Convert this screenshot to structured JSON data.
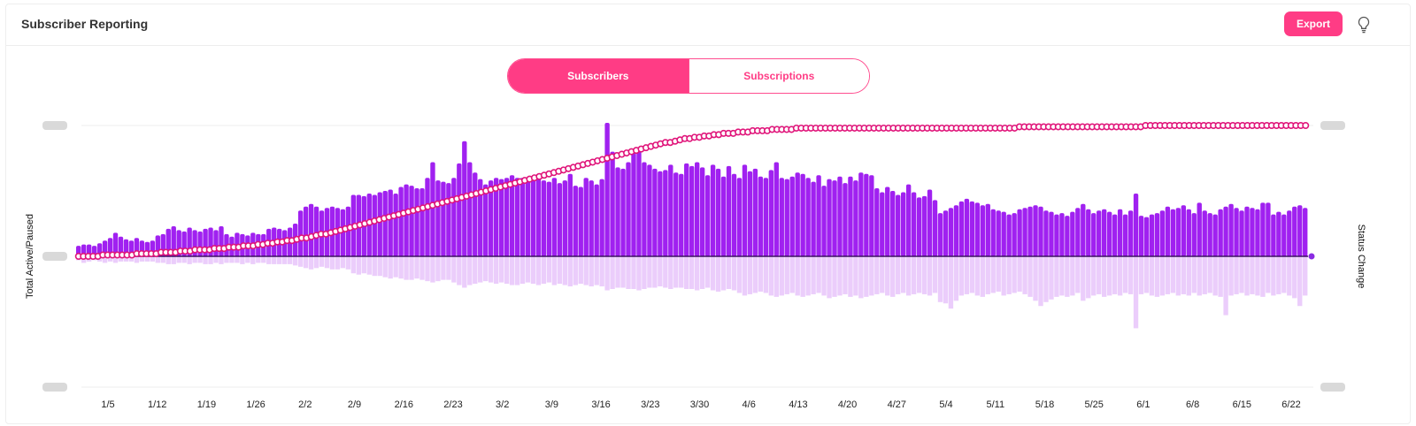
{
  "header": {
    "title": "Subscriber Reporting",
    "export_label": "Export",
    "help_icon": "lightbulb-icon"
  },
  "toggle": {
    "tabs": [
      {
        "label": "Subscribers",
        "active": true
      },
      {
        "label": "Subscriptions",
        "active": false
      }
    ]
  },
  "colors": {
    "accent": "#ff3c85",
    "bar_positive": "#a021f0",
    "bar_negative": "#ebcdfb",
    "line": "#e0157a"
  },
  "chart_data": {
    "type": "bar",
    "ylabel_left": "Total Active/Paused",
    "ylabel_right": "Status Change",
    "ticks": [
      "1/5",
      "1/12",
      "1/19",
      "1/26",
      "2/2",
      "2/9",
      "2/16",
      "2/23",
      "3/2",
      "3/9",
      "3/16",
      "3/23",
      "3/30",
      "4/6",
      "4/13",
      "4/20",
      "4/27",
      "5/4",
      "5/11",
      "5/18",
      "5/25",
      "6/1",
      "6/8",
      "6/15",
      "6/22"
    ],
    "ylim_change": [
      -1,
      1
    ],
    "ylim_total": [
      0,
      1
    ],
    "series": [
      {
        "kind": "bar",
        "values": [
          0.08,
          0.09,
          0.09,
          0.08,
          0.1,
          0.12,
          0.14,
          0.18,
          0.15,
          0.13,
          0.12,
          0.14,
          0.12,
          0.11,
          0.12,
          0.16,
          0.17,
          0.21,
          0.23,
          0.2,
          0.19,
          0.22,
          0.2,
          0.19,
          0.21,
          0.22,
          0.2,
          0.23,
          0.17,
          0.15,
          0.18,
          0.17,
          0.16,
          0.18,
          0.17,
          0.17,
          0.21,
          0.22,
          0.21,
          0.2,
          0.22,
          0.25,
          0.35,
          0.38,
          0.4,
          0.38,
          0.35,
          0.37,
          0.38,
          0.37,
          0.36,
          0.38,
          0.47,
          0.47,
          0.46,
          0.48,
          0.47,
          0.49,
          0.5,
          0.51,
          0.48,
          0.53,
          0.55,
          0.54,
          0.52,
          0.52,
          0.6,
          0.72,
          0.58,
          0.57,
          0.56,
          0.6,
          0.71,
          0.88,
          0.72,
          0.64,
          0.59,
          0.55,
          0.58,
          0.6,
          0.59,
          0.6,
          0.62,
          0.6,
          0.6,
          0.58,
          0.6,
          0.63,
          0.58,
          0.57,
          0.6,
          0.56,
          0.58,
          0.63,
          0.54,
          0.53,
          0.6,
          0.58,
          0.55,
          0.59,
          1.02,
          0.8,
          0.68,
          0.67,
          0.72,
          0.79,
          0.8,
          0.72,
          0.7,
          0.67,
          0.65,
          0.66,
          0.7,
          0.64,
          0.63,
          0.71,
          0.69,
          0.72,
          0.68,
          0.62,
          0.7,
          0.67,
          0.61,
          0.69,
          0.63,
          0.6,
          0.7,
          0.65,
          0.67,
          0.61,
          0.6,
          0.66,
          0.72,
          0.6,
          0.59,
          0.61,
          0.64,
          0.63,
          0.6,
          0.57,
          0.62,
          0.54,
          0.59,
          0.58,
          0.61,
          0.56,
          0.61,
          0.58,
          0.64,
          0.63,
          0.62,
          0.52,
          0.49,
          0.53,
          0.5,
          0.47,
          0.49,
          0.55,
          0.49,
          0.45,
          0.46,
          0.51,
          0.43,
          0.33,
          0.35,
          0.37,
          0.39,
          0.42,
          0.44,
          0.42,
          0.41,
          0.39,
          0.4,
          0.36,
          0.35,
          0.34,
          0.32,
          0.33,
          0.36,
          0.37,
          0.38,
          0.39,
          0.38,
          0.35,
          0.34,
          0.32,
          0.33,
          0.31,
          0.34,
          0.37,
          0.4,
          0.36,
          0.33,
          0.35,
          0.36,
          0.34,
          0.32,
          0.36,
          0.32,
          0.35,
          0.48,
          0.31,
          0.3,
          0.32,
          0.33,
          0.35,
          0.38,
          0.36,
          0.37,
          0.39,
          0.36,
          0.33,
          0.41,
          0.35,
          0.33,
          0.32,
          0.36,
          0.38,
          0.4,
          0.37,
          0.35,
          0.38,
          0.37,
          0.36,
          0.41,
          0.41,
          0.32,
          0.34,
          0.32,
          0.35,
          0.38,
          0.39,
          0.37
        ]
      },
      {
        "kind": "bar_negative",
        "values": [
          0.03,
          0.05,
          0.04,
          0.03,
          0.04,
          0.05,
          0.04,
          0.05,
          0.04,
          0.04,
          0.04,
          0.05,
          0.04,
          0.04,
          0.04,
          0.05,
          0.05,
          0.06,
          0.06,
          0.05,
          0.05,
          0.06,
          0.05,
          0.05,
          0.06,
          0.06,
          0.05,
          0.06,
          0.05,
          0.05,
          0.05,
          0.06,
          0.05,
          0.06,
          0.05,
          0.05,
          0.06,
          0.06,
          0.06,
          0.06,
          0.06,
          0.07,
          0.08,
          0.09,
          0.1,
          0.09,
          0.08,
          0.09,
          0.1,
          0.1,
          0.09,
          0.1,
          0.13,
          0.14,
          0.13,
          0.14,
          0.15,
          0.15,
          0.16,
          0.17,
          0.16,
          0.17,
          0.18,
          0.18,
          0.17,
          0.18,
          0.19,
          0.2,
          0.19,
          0.18,
          0.18,
          0.2,
          0.22,
          0.24,
          0.22,
          0.21,
          0.2,
          0.19,
          0.2,
          0.21,
          0.2,
          0.21,
          0.22,
          0.22,
          0.21,
          0.2,
          0.21,
          0.22,
          0.21,
          0.2,
          0.22,
          0.21,
          0.22,
          0.23,
          0.22,
          0.21,
          0.22,
          0.23,
          0.22,
          0.23,
          0.26,
          0.25,
          0.24,
          0.24,
          0.25,
          0.25,
          0.26,
          0.25,
          0.24,
          0.24,
          0.23,
          0.24,
          0.25,
          0.24,
          0.24,
          0.25,
          0.25,
          0.26,
          0.25,
          0.24,
          0.26,
          0.27,
          0.26,
          0.25,
          0.26,
          0.28,
          0.3,
          0.29,
          0.28,
          0.27,
          0.28,
          0.3,
          0.31,
          0.3,
          0.29,
          0.28,
          0.3,
          0.31,
          0.3,
          0.29,
          0.28,
          0.3,
          0.32,
          0.31,
          0.3,
          0.29,
          0.31,
          0.3,
          0.32,
          0.31,
          0.3,
          0.29,
          0.28,
          0.3,
          0.31,
          0.29,
          0.28,
          0.3,
          0.29,
          0.28,
          0.29,
          0.3,
          0.28,
          0.35,
          0.36,
          0.4,
          0.34,
          0.3,
          0.29,
          0.28,
          0.3,
          0.31,
          0.29,
          0.28,
          0.27,
          0.3,
          0.29,
          0.28,
          0.27,
          0.29,
          0.31,
          0.34,
          0.38,
          0.35,
          0.33,
          0.31,
          0.3,
          0.31,
          0.3,
          0.28,
          0.34,
          0.32,
          0.3,
          0.29,
          0.31,
          0.3,
          0.29,
          0.3,
          0.28,
          0.29,
          0.55,
          0.29,
          0.28,
          0.3,
          0.31,
          0.3,
          0.29,
          0.28,
          0.3,
          0.29,
          0.3,
          0.28,
          0.3,
          0.29,
          0.28,
          0.3,
          0.31,
          0.45,
          0.3,
          0.29,
          0.28,
          0.3,
          0.29,
          0.3,
          0.31,
          0.28,
          0.3,
          0.29,
          0.28,
          0.3,
          0.32,
          0.38,
          0.3
        ]
      },
      {
        "kind": "line",
        "values": [
          0.0,
          0.0,
          0.0,
          0.0,
          0.0,
          0.01,
          0.01,
          0.01,
          0.01,
          0.01,
          0.01,
          0.01,
          0.02,
          0.02,
          0.02,
          0.02,
          0.02,
          0.03,
          0.03,
          0.03,
          0.03,
          0.04,
          0.04,
          0.04,
          0.05,
          0.05,
          0.05,
          0.05,
          0.06,
          0.06,
          0.06,
          0.07,
          0.07,
          0.07,
          0.08,
          0.08,
          0.08,
          0.09,
          0.09,
          0.1,
          0.1,
          0.11,
          0.11,
          0.12,
          0.12,
          0.13,
          0.14,
          0.14,
          0.15,
          0.16,
          0.17,
          0.17,
          0.18,
          0.19,
          0.2,
          0.21,
          0.22,
          0.23,
          0.24,
          0.25,
          0.26,
          0.27,
          0.28,
          0.29,
          0.3,
          0.31,
          0.32,
          0.33,
          0.34,
          0.35,
          0.36,
          0.37,
          0.38,
          0.39,
          0.4,
          0.41,
          0.42,
          0.43,
          0.44,
          0.45,
          0.46,
          0.47,
          0.48,
          0.49,
          0.5,
          0.51,
          0.52,
          0.53,
          0.54,
          0.55,
          0.56,
          0.57,
          0.58,
          0.59,
          0.6,
          0.61,
          0.62,
          0.63,
          0.64,
          0.65,
          0.66,
          0.67,
          0.68,
          0.69,
          0.7,
          0.71,
          0.72,
          0.73,
          0.74,
          0.75,
          0.76,
          0.77,
          0.78,
          0.79,
          0.8,
          0.81,
          0.82,
          0.83,
          0.84,
          0.85,
          0.86,
          0.87,
          0.87,
          0.88,
          0.89,
          0.9,
          0.9,
          0.91,
          0.91,
          0.92,
          0.92,
          0.93,
          0.93,
          0.94,
          0.94,
          0.94,
          0.95,
          0.95,
          0.95,
          0.96,
          0.96,
          0.96,
          0.96,
          0.97,
          0.97,
          0.97,
          0.97,
          0.97,
          0.98,
          0.98,
          0.98,
          0.98,
          0.98,
          0.98,
          0.98,
          0.98,
          0.98,
          0.98,
          0.98,
          0.98,
          0.98,
          0.98,
          0.98,
          0.98,
          0.98,
          0.98,
          0.98,
          0.98,
          0.98,
          0.98,
          0.98,
          0.98,
          0.98,
          0.98,
          0.98,
          0.98,
          0.98,
          0.98,
          0.98,
          0.98,
          0.98,
          0.98,
          0.98,
          0.98,
          0.98,
          0.98,
          0.98,
          0.98,
          0.98,
          0.98,
          0.98,
          0.98,
          0.98,
          0.98,
          0.99,
          0.99,
          0.99,
          0.99,
          0.99,
          0.99,
          0.99,
          0.99,
          0.99,
          0.99,
          0.99,
          0.99,
          0.99,
          0.99,
          0.99,
          0.99,
          0.99,
          0.99,
          0.99,
          0.99,
          0.99,
          0.99,
          0.99,
          0.99,
          0.99,
          0.99,
          1.0,
          1.0,
          1.0,
          1.0,
          1.0,
          1.0,
          1.0,
          1.0,
          1.0,
          1.0,
          1.0,
          1.0,
          1.0,
          1.0,
          1.0,
          1.0,
          1.0,
          1.0,
          1.0,
          1.0,
          1.0,
          1.0,
          1.0,
          1.0,
          1.0,
          1.0,
          1.0,
          1.0,
          1.0,
          1.0,
          1.0,
          1.0,
          1.0,
          1.0
        ]
      }
    ]
  }
}
